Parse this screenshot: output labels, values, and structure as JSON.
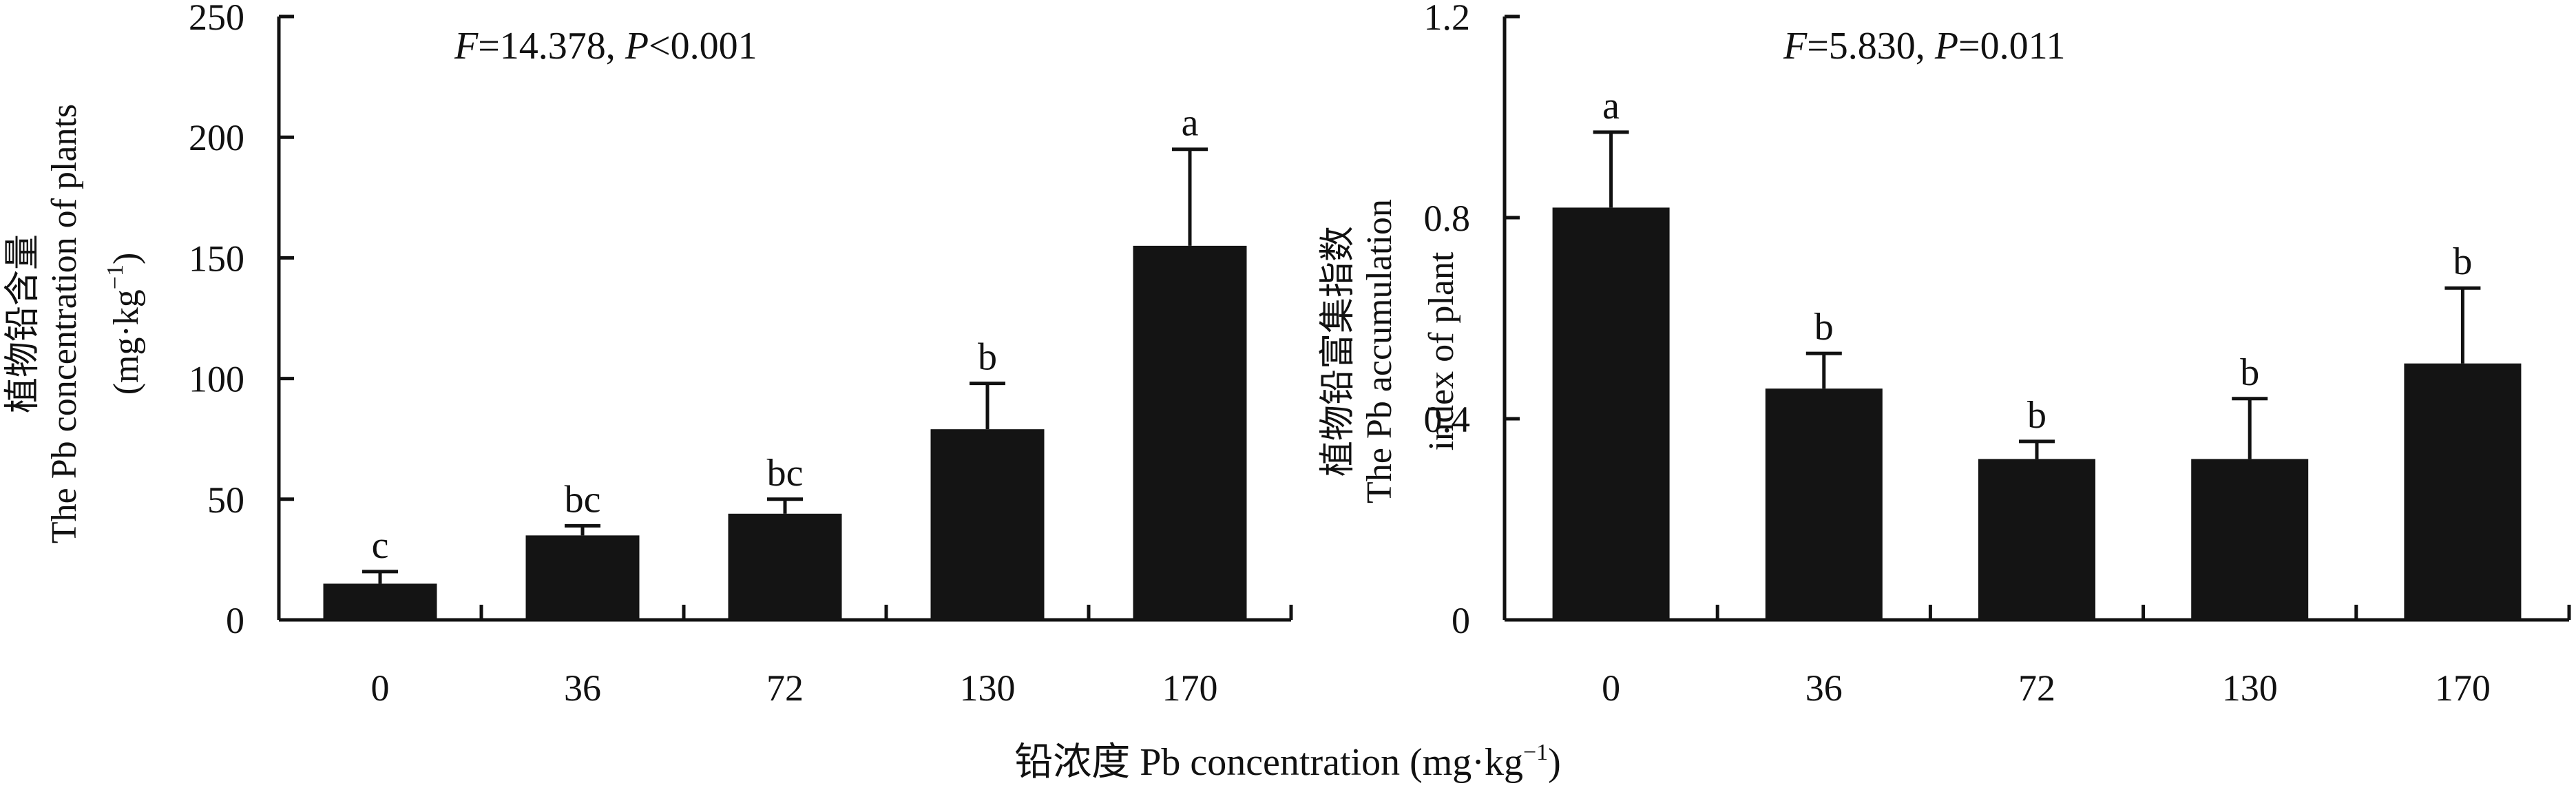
{
  "figure": {
    "xlabel": "铅浓度 Pb concentration (mg·kg",
    "xlabel_sup": "−1",
    "xlabel_close": ")"
  },
  "chart_data": [
    {
      "type": "bar",
      "title": "",
      "stat": {
        "f_label": "F",
        "f_value": "=14.378, ",
        "p_label": "P",
        "p_value": "<0.001"
      },
      "ylabel_lines": [
        "植物铅含量",
        "The Pb concentration of plants"
      ],
      "ylabel_unit": {
        "open": "(mg·kg",
        "sup": "−1",
        "close": ")"
      },
      "categories": [
        "0",
        "36",
        "72",
        "130",
        "170"
      ],
      "values": [
        15,
        35,
        44,
        79,
        155
      ],
      "errors": [
        5,
        4,
        6,
        19,
        40
      ],
      "letters": [
        "c",
        "bc",
        "bc",
        "b",
        "a"
      ],
      "ylim": [
        0,
        250
      ],
      "yticks": [
        0,
        50,
        100,
        150,
        200,
        250
      ],
      "ytick_labels": [
        "0",
        "50",
        "100",
        "150",
        "200",
        "250"
      ],
      "bar_color": "#141414"
    },
    {
      "type": "bar",
      "title": "",
      "stat": {
        "f_label": "F",
        "f_value": "=5.830, ",
        "p_label": "P",
        "p_value": "=0.011"
      },
      "ylabel_lines": [
        "植物铅富集指数",
        "The Pb accumulation",
        "index of plant"
      ],
      "categories": [
        "0",
        "36",
        "72",
        "130",
        "170"
      ],
      "values": [
        0.82,
        0.46,
        0.32,
        0.32,
        0.51
      ],
      "errors": [
        0.15,
        0.07,
        0.035,
        0.12,
        0.15
      ],
      "letters": [
        "a",
        "b",
        "b",
        "b",
        "b"
      ],
      "ylim": [
        0,
        1.2
      ],
      "yticks": [
        0,
        0.4,
        0.8,
        1.2
      ],
      "ytick_labels": [
        "0",
        "0.4",
        "0.8",
        "1.2"
      ],
      "bar_color": "#141414"
    }
  ]
}
